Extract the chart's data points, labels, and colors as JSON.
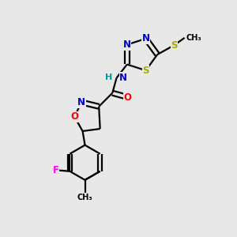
{
  "background_color": "#e8e8e8",
  "fig_width": 3.0,
  "fig_height": 3.0,
  "dpi": 100,
  "atom_colors": {
    "N": "#0000cc",
    "S": "#aaaa00",
    "O": "#ff0000",
    "F": "#ff00ff",
    "C": "#000000",
    "H": "#009999"
  },
  "font_size": 8.5,
  "line_width": 1.6
}
